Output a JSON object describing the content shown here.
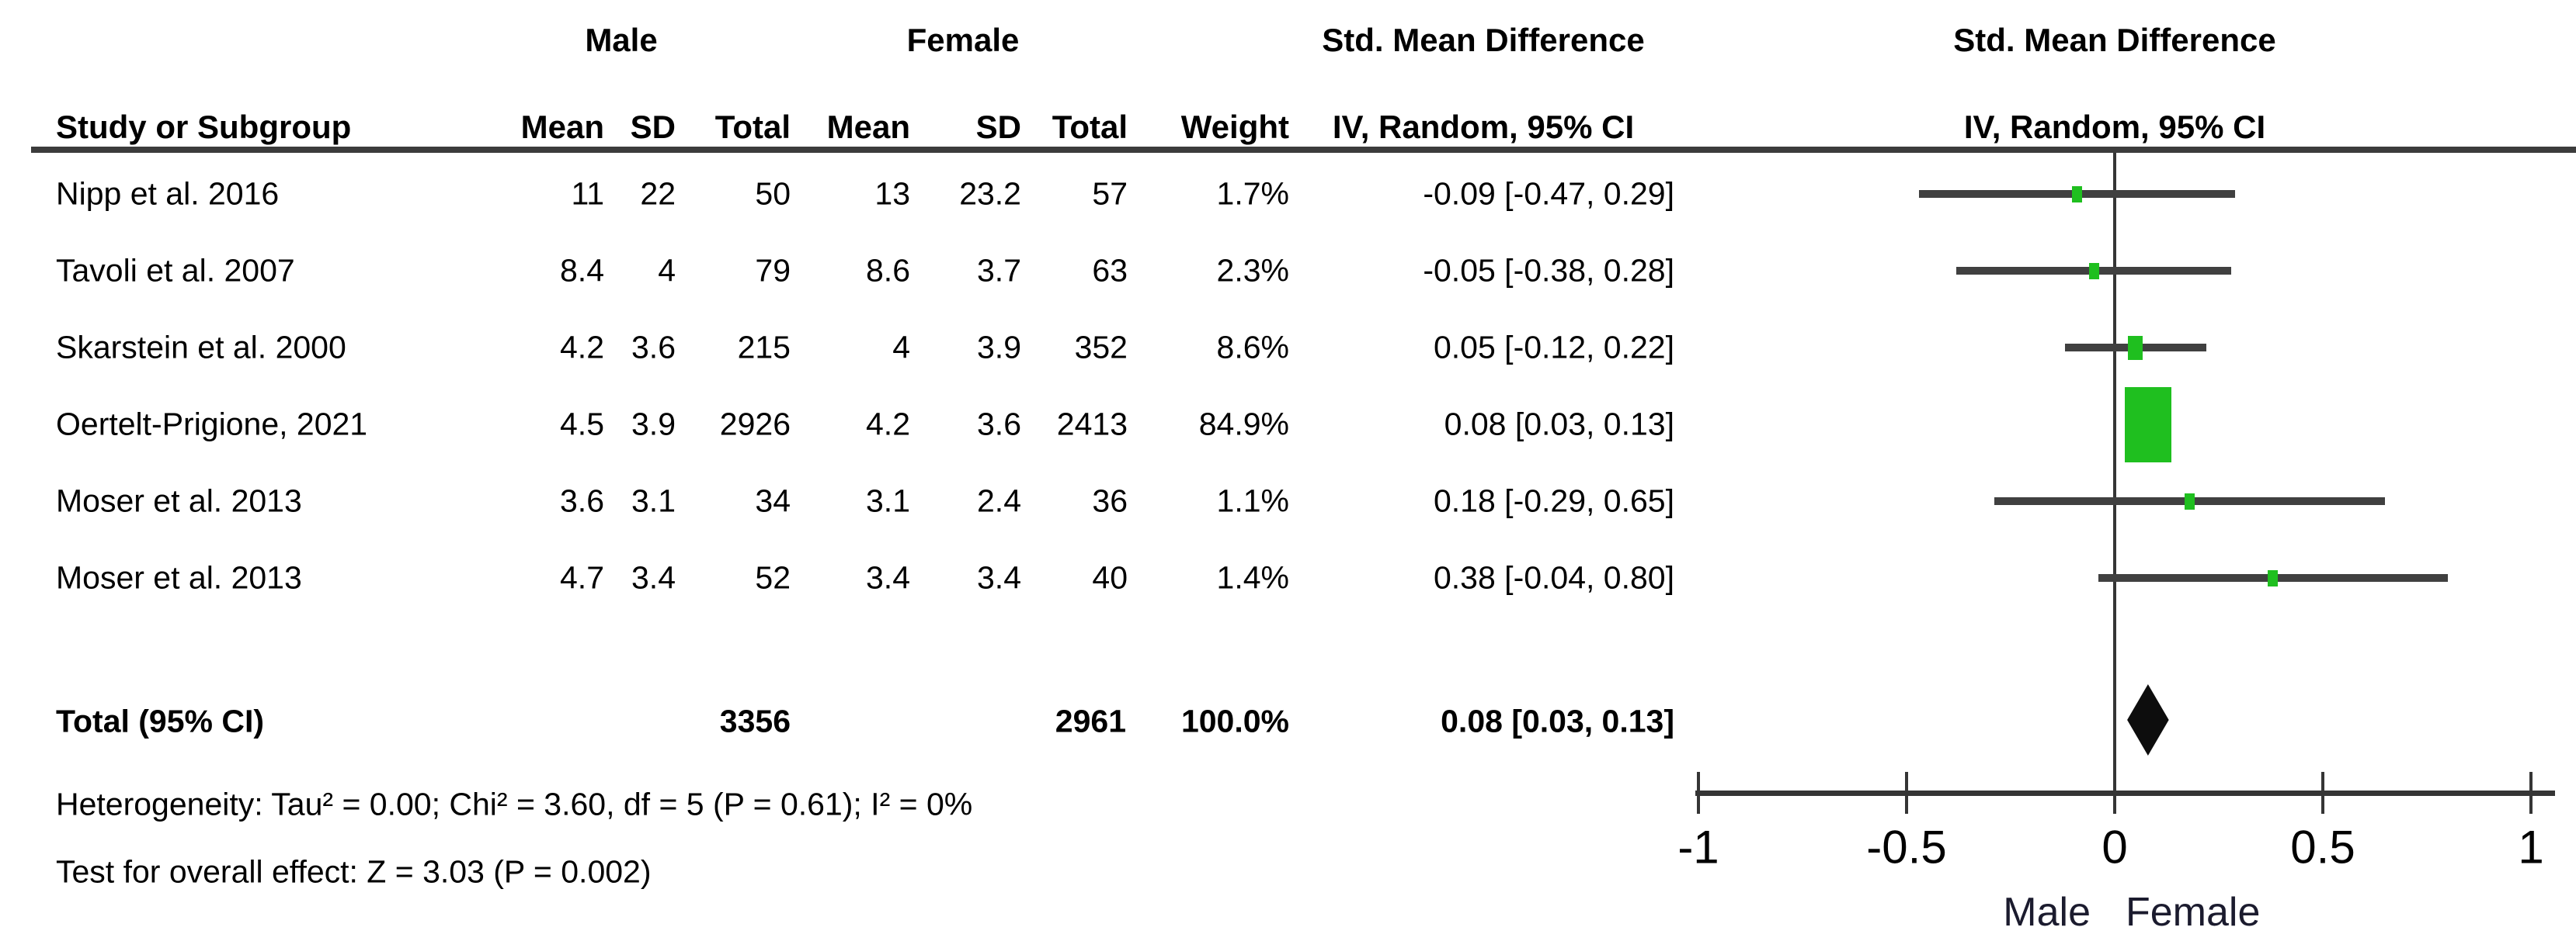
{
  "chart_data": {
    "type": "forest",
    "headers": {
      "study": "Study or Subgroup",
      "group1": "Male",
      "group2": "Female",
      "mean": "Mean",
      "sd": "SD",
      "total": "Total",
      "weight": "Weight",
      "effect": "Std. Mean Difference",
      "method": "IV, Random, 95% CI"
    },
    "studies": [
      {
        "study": "Nipp et al. 2016",
        "m_mean": "11",
        "m_sd": "22",
        "m_total": "50",
        "f_mean": "13",
        "f_sd": "23.2",
        "f_total": "57",
        "weight": "1.7%",
        "ci_text": "-0.09 [-0.47, 0.29]",
        "est": -0.09,
        "lo": -0.47,
        "hi": 0.29,
        "weight_pct": 1.7
      },
      {
        "study": "Tavoli et al. 2007",
        "m_mean": "8.4",
        "m_sd": "4",
        "m_total": "79",
        "f_mean": "8.6",
        "f_sd": "3.7",
        "f_total": "63",
        "weight": "2.3%",
        "ci_text": "-0.05 [-0.38, 0.28]",
        "est": -0.05,
        "lo": -0.38,
        "hi": 0.28,
        "weight_pct": 2.3
      },
      {
        "study": "Skarstein et al. 2000",
        "m_mean": "4.2",
        "m_sd": "3.6",
        "m_total": "215",
        "f_mean": "4",
        "f_sd": "3.9",
        "f_total": "352",
        "weight": "8.6%",
        "ci_text": "0.05 [-0.12, 0.22]",
        "est": 0.05,
        "lo": -0.12,
        "hi": 0.22,
        "weight_pct": 8.6
      },
      {
        "study": "Oertelt-Prigione, 2021",
        "m_mean": "4.5",
        "m_sd": "3.9",
        "m_total": "2926",
        "f_mean": "4.2",
        "f_sd": "3.6",
        "f_total": "2413",
        "weight": "84.9%",
        "ci_text": "0.08 [0.03, 0.13]",
        "est": 0.08,
        "lo": 0.03,
        "hi": 0.13,
        "weight_pct": 84.9
      },
      {
        "study": "Moser et al. 2013",
        "m_mean": "3.6",
        "m_sd": "3.1",
        "m_total": "34",
        "f_mean": "3.1",
        "f_sd": "2.4",
        "f_total": "36",
        "weight": "1.1%",
        "ci_text": "0.18 [-0.29, 0.65]",
        "est": 0.18,
        "lo": -0.29,
        "hi": 0.65,
        "weight_pct": 1.1
      },
      {
        "study": "Moser et al. 2013",
        "m_mean": "4.7",
        "m_sd": "3.4",
        "m_total": "52",
        "f_mean": "3.4",
        "f_sd": "3.4",
        "f_total": "40",
        "weight": "1.4%",
        "ci_text": "0.38 [-0.04, 0.80]",
        "est": 0.38,
        "lo": -0.04,
        "hi": 0.8,
        "weight_pct": 1.4
      }
    ],
    "total": {
      "label": "Total (95% CI)",
      "m_total": "3356",
      "f_total": "2961",
      "weight": "100.0%",
      "ci_text": "0.08 [0.03, 0.13]",
      "est": 0.08,
      "lo": 0.03,
      "hi": 0.13
    },
    "footnotes": {
      "heterogeneity": "Heterogeneity: Tau² = 0.00; Chi² = 3.60, df = 5 (P = 0.61); I² = 0%",
      "overall_effect": "Test for overall effect: Z = 3.03 (P = 0.002)"
    },
    "axis": {
      "min": -1,
      "max": 1,
      "ticks": [
        -1,
        -0.5,
        0,
        0.5,
        1
      ],
      "tick_labels": [
        "-1",
        "-0.5",
        "0",
        "0.5",
        "1"
      ],
      "left_label": "Male",
      "right_label": "Female"
    },
    "colors": {
      "marker_green": "#1FBF1F",
      "ci_line": "#404040",
      "diamond": "#0d0d0d",
      "axis": "#353535",
      "text": "#000000"
    }
  }
}
